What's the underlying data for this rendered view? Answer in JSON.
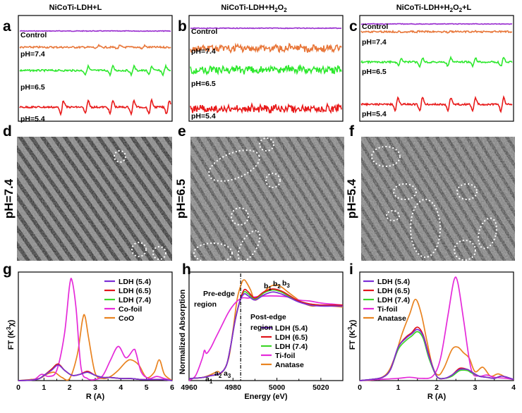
{
  "panel_letters": {
    "a": "a",
    "b": "b",
    "c": "c",
    "d": "d",
    "e": "e",
    "f": "f",
    "g": "g",
    "h": "h",
    "i": "i"
  },
  "top_titles": {
    "a": "NiCoTi-LDH+L",
    "b": {
      "base": "NiCoTi-LDH+H",
      "sub": "2",
      "mid": "O",
      "sub2": "2",
      "tail": ""
    },
    "c": {
      "base": "NiCoTi-LDH+H",
      "sub": "2",
      "mid": "O",
      "sub2": "2",
      "tail": "+L"
    }
  },
  "esr_labels": [
    "Control",
    "pH=7.4",
    "pH=6.5",
    "pH=5.4"
  ],
  "esr_colors": {
    "Control": "#9a2fd0",
    "pH=7.4": "#e8773a",
    "pH=6.5": "#2ee82e",
    "pH=5.4": "#e81a1a"
  },
  "tem_labels": {
    "d": "pH=7.4",
    "e": "pH=6.5",
    "f": "pH=5.4"
  },
  "chart_data": [
    {
      "panel": "g",
      "type": "line",
      "xlabel": "R (A)",
      "ylabel_base": "FT (K",
      "ylabel_sup": "3",
      "ylabel_tail": "χ)",
      "xlim": [
        0,
        6
      ],
      "xticks": [
        "0",
        "1",
        "2",
        "3",
        "4",
        "5",
        "6"
      ],
      "legend_position": "top-right",
      "series": [
        {
          "name": "LDH (5.4)",
          "color": "#7b2fd6",
          "x": [
            0,
            0.7,
            1.0,
            1.3,
            1.55,
            1.8,
            2.1,
            2.4,
            2.7,
            3.0,
            3.3,
            3.6,
            4.0,
            4.4,
            4.8,
            5.2,
            5.6,
            6.0
          ],
          "y": [
            0,
            0.01,
            0.05,
            0.1,
            0.15,
            0.1,
            0.05,
            0.06,
            0.08,
            0.05,
            0.03,
            0.03,
            0.02,
            0.02,
            0.01,
            0.01,
            0.01,
            0
          ]
        },
        {
          "name": "LDH (6.5)",
          "color": "#e0141a",
          "x": [
            0,
            0.7,
            1.0,
            1.3,
            1.55,
            1.8,
            2.1,
            2.4,
            2.7,
            3.0,
            3.3,
            3.6,
            4.0,
            4.4,
            4.8,
            5.2,
            5.6,
            6.0
          ],
          "y": [
            0,
            0.01,
            0.05,
            0.11,
            0.16,
            0.1,
            0.05,
            0.06,
            0.09,
            0.05,
            0.03,
            0.03,
            0.02,
            0.02,
            0.01,
            0.01,
            0.01,
            0
          ]
        },
        {
          "name": "LDH (7.4)",
          "color": "#3ed62a",
          "x": [
            0,
            0.7,
            1.0,
            1.3,
            1.55,
            1.8,
            2.1,
            2.4,
            2.7,
            3.0,
            3.3,
            3.6,
            4.0,
            4.4,
            4.8,
            5.2,
            5.6,
            6.0
          ],
          "y": [
            0,
            0.01,
            0.05,
            0.11,
            0.16,
            0.1,
            0.05,
            0.06,
            0.08,
            0.05,
            0.03,
            0.03,
            0.02,
            0.02,
            0.01,
            0.01,
            0.01,
            0
          ]
        },
        {
          "name": "Co-foil",
          "color": "#e52ad9",
          "x": [
            0,
            0.6,
            0.9,
            1.2,
            1.5,
            1.8,
            2.0,
            2.1,
            2.25,
            2.45,
            2.7,
            3.0,
            3.3,
            3.6,
            3.9,
            4.2,
            4.5,
            4.6,
            4.8,
            5.1,
            5.4,
            5.7,
            6.0
          ],
          "y": [
            0,
            0.01,
            0.06,
            0.04,
            0.1,
            0.45,
            0.92,
            0.96,
            0.7,
            0.12,
            0.02,
            0.01,
            0.05,
            0.2,
            0.33,
            0.22,
            0.3,
            0.26,
            0.08,
            0.02,
            0.04,
            0.02,
            0
          ]
        },
        {
          "name": "CoO",
          "color": "#e98320",
          "x": [
            0,
            0.8,
            1.1,
            1.4,
            1.7,
            2.0,
            2.3,
            2.5,
            2.6,
            2.75,
            3.0,
            3.3,
            3.6,
            3.9,
            4.2,
            4.4,
            4.7,
            5.0,
            5.3,
            5.5,
            5.7,
            6.0
          ],
          "y": [
            0,
            0.02,
            0.06,
            0.08,
            0.03,
            0.02,
            0.25,
            0.58,
            0.62,
            0.4,
            0.07,
            0.02,
            0.04,
            0.1,
            0.18,
            0.2,
            0.15,
            0.03,
            0.08,
            0.2,
            0.06,
            0
          ]
        }
      ]
    },
    {
      "panel": "h",
      "type": "line",
      "xlabel": "Energy (eV)",
      "ylabel": "Normalized Absorption",
      "xlim": [
        4960,
        5030
      ],
      "xticks": [
        "4960",
        "4980",
        "5000",
        "5020"
      ],
      "annotations": {
        "pre_edge": [
          "Pre-edge",
          "region"
        ],
        "post_edge": [
          "Post-edge",
          "region"
        ],
        "a_labels": {
          "a": "a",
          "s1": "1",
          "s2": "2",
          "s3": "3"
        },
        "b_labels": {
          "b": "b",
          "s1": "1",
          "s2": "2",
          "s3": "3"
        }
      },
      "legend_position": "center-right",
      "series": [
        {
          "name": "LDH (5.4)",
          "color": "#7b2fd6",
          "x": [
            4960,
            4966,
            4970,
            4974,
            4977,
            4979,
            4981,
            4983,
            4985,
            4987,
            4990,
            4994,
            4998,
            5002,
            5006,
            5010,
            5015,
            5020,
            5025,
            5030
          ],
          "y": [
            0.02,
            0.03,
            0.05,
            0.07,
            0.15,
            0.35,
            0.6,
            0.78,
            0.86,
            0.84,
            0.8,
            0.85,
            0.88,
            0.86,
            0.82,
            0.78,
            0.75,
            0.74,
            0.74,
            0.74
          ]
        },
        {
          "name": "LDH (6.5)",
          "color": "#e0141a",
          "x": [
            4960,
            4966,
            4970,
            4974,
            4977,
            4979,
            4981,
            4983,
            4985,
            4987,
            4990,
            4994,
            4998,
            5002,
            5006,
            5010,
            5015,
            5020,
            5025,
            5030
          ],
          "y": [
            0.02,
            0.03,
            0.05,
            0.07,
            0.15,
            0.35,
            0.6,
            0.78,
            0.9,
            0.88,
            0.82,
            0.88,
            0.91,
            0.89,
            0.84,
            0.79,
            0.76,
            0.75,
            0.75,
            0.75
          ]
        },
        {
          "name": "LDH (7.4)",
          "color": "#3ed62a",
          "x": [
            4960,
            4966,
            4970,
            4974,
            4977,
            4979,
            4981,
            4983,
            4985,
            4987,
            4990,
            4994,
            4998,
            5002,
            5006,
            5010,
            5015,
            5020,
            5025,
            5030
          ],
          "y": [
            0.02,
            0.03,
            0.05,
            0.07,
            0.15,
            0.35,
            0.6,
            0.78,
            0.88,
            0.86,
            0.81,
            0.87,
            0.9,
            0.88,
            0.83,
            0.79,
            0.76,
            0.75,
            0.75,
            0.75
          ]
        },
        {
          "name": "Ti-foil",
          "color": "#e52ad9",
          "x": [
            4960,
            4963,
            4966,
            4967,
            4968,
            4970,
            4972,
            4975,
            4978,
            4981,
            4984,
            4987,
            4990,
            4995,
            5000,
            5005,
            5010,
            5015,
            5020,
            5025,
            5030
          ],
          "y": [
            0.0,
            0.05,
            0.22,
            0.3,
            0.27,
            0.33,
            0.42,
            0.55,
            0.68,
            0.77,
            0.82,
            0.82,
            0.83,
            0.84,
            0.84,
            0.83,
            0.8,
            0.79,
            0.77,
            0.76,
            0.75
          ]
        },
        {
          "name": "Anatase",
          "color": "#e98320",
          "x": [
            4960,
            4966,
            4970,
            4973,
            4975,
            4978,
            4980,
            4982,
            4984,
            4985,
            4986,
            4988,
            4990,
            4993,
            4996,
            4999,
            5002,
            5005,
            5008,
            5012,
            5016,
            5020,
            5025,
            5030
          ],
          "y": [
            0.02,
            0.03,
            0.06,
            0.09,
            0.08,
            0.22,
            0.5,
            0.82,
            0.97,
            1.0,
            0.98,
            0.9,
            0.8,
            0.85,
            0.92,
            0.95,
            0.93,
            0.88,
            0.83,
            0.77,
            0.74,
            0.75,
            0.74,
            0.73
          ]
        }
      ]
    },
    {
      "panel": "i",
      "type": "line",
      "xlabel": "R (A)",
      "ylabel_base": "FT (K",
      "ylabel_sup": "3",
      "ylabel_tail": "χ)",
      "xlim": [
        0,
        4
      ],
      "xticks": [
        "0",
        "1",
        "2",
        "3",
        "4"
      ],
      "legend_position": "top-left",
      "series": [
        {
          "name": "LDH (5.4)",
          "color": "#7b2fd6",
          "x": [
            0,
            0.3,
            0.6,
            0.8,
            1.0,
            1.2,
            1.35,
            1.5,
            1.65,
            1.8,
            2.0,
            2.2,
            2.4,
            2.6,
            2.8,
            2.9,
            3.1,
            3.3,
            3.5,
            3.7,
            4.0
          ],
          "y": [
            0,
            0.01,
            0.03,
            0.1,
            0.3,
            0.38,
            0.42,
            0.46,
            0.4,
            0.22,
            0.04,
            0.02,
            0.05,
            0.1,
            0.1,
            0.08,
            0.04,
            0.03,
            0.02,
            0.04,
            0.01
          ]
        },
        {
          "name": "LDH (6.5)",
          "color": "#e0141a",
          "x": [
            0,
            0.3,
            0.6,
            0.8,
            1.0,
            1.2,
            1.35,
            1.5,
            1.65,
            1.8,
            2.0,
            2.2,
            2.4,
            2.6,
            2.8,
            2.9,
            3.1,
            3.3,
            3.5,
            3.7,
            4.0
          ],
          "y": [
            0,
            0.01,
            0.03,
            0.1,
            0.3,
            0.39,
            0.43,
            0.48,
            0.41,
            0.23,
            0.04,
            0.02,
            0.05,
            0.11,
            0.1,
            0.08,
            0.04,
            0.03,
            0.02,
            0.04,
            0.01
          ]
        },
        {
          "name": "LDH (7.4)",
          "color": "#3ed62a",
          "x": [
            0,
            0.3,
            0.6,
            0.8,
            1.0,
            1.2,
            1.35,
            1.5,
            1.65,
            1.8,
            2.0,
            2.2,
            2.4,
            2.6,
            2.8,
            2.9,
            3.1,
            3.3,
            3.5,
            3.7,
            4.0
          ],
          "y": [
            0,
            0.01,
            0.03,
            0.1,
            0.28,
            0.36,
            0.4,
            0.44,
            0.38,
            0.2,
            0.04,
            0.02,
            0.04,
            0.09,
            0.09,
            0.07,
            0.04,
            0.03,
            0.02,
            0.04,
            0.01
          ]
        },
        {
          "name": "Ti-foil",
          "color": "#e52ad9",
          "x": [
            0,
            0.5,
            1.0,
            1.3,
            1.6,
            1.9,
            2.1,
            2.3,
            2.45,
            2.55,
            2.7,
            2.9,
            3.1,
            3.3,
            3.5,
            3.8,
            4.0
          ],
          "y": [
            0,
            0.01,
            0.02,
            0.03,
            0.02,
            0.04,
            0.2,
            0.6,
            0.9,
            0.88,
            0.55,
            0.1,
            0.04,
            0.05,
            0.03,
            0.02,
            0.01
          ]
        },
        {
          "name": "Anatase",
          "color": "#e98320",
          "x": [
            0,
            0.4,
            0.7,
            0.9,
            1.1,
            1.3,
            1.45,
            1.6,
            1.75,
            1.9,
            2.05,
            2.2,
            2.4,
            2.55,
            2.7,
            2.85,
            3.0,
            3.2,
            3.4,
            3.6,
            3.8,
            4.0
          ],
          "y": [
            0,
            0.01,
            0.06,
            0.2,
            0.42,
            0.6,
            0.73,
            0.6,
            0.35,
            0.12,
            0.05,
            0.12,
            0.28,
            0.3,
            0.25,
            0.2,
            0.08,
            0.12,
            0.04,
            0.06,
            0.03,
            0.01
          ]
        }
      ]
    }
  ]
}
